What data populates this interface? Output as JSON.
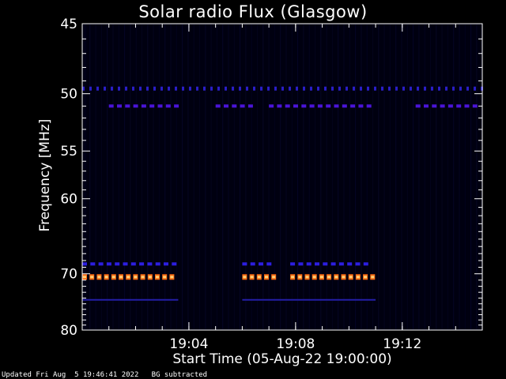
{
  "chart_data": {
    "type": "heatmap",
    "title": "Solar radio Flux (Glasgow)",
    "xlabel": "Start Time (05-Aug-22 19:00:00)",
    "ylabel": "Frequency [MHz]",
    "x_start": "19:00",
    "x_end": "19:15",
    "x_ticks": [
      "19:04",
      "19:08",
      "19:12"
    ],
    "y_ticks": [
      45,
      50,
      55,
      60,
      70,
      80
    ],
    "y_scale": "reciprocal",
    "ylim": [
      45,
      80
    ],
    "grid": false,
    "background_color": "#000010",
    "signals": [
      {
        "freq_mhz": 49.6,
        "level": "low",
        "color": "#2a1ec8",
        "segments": [
          [
            "19:00",
            "19:15"
          ]
        ],
        "pattern": "dots"
      },
      {
        "freq_mhz": 51.0,
        "level": "medium",
        "color": "#4a14d8",
        "segments": [
          [
            "19:01",
            "19:03.7"
          ],
          [
            "19:05",
            "19:06.5"
          ],
          [
            "19:07",
            "19:11"
          ],
          [
            "19:12.5",
            "19:14.8"
          ]
        ],
        "pattern": "dashes"
      },
      {
        "freq_mhz": 68.5,
        "level": "low",
        "color": "#2c1ee0",
        "segments": [
          [
            "19:00",
            "19:03.6"
          ],
          [
            "19:06",
            "19:07.3"
          ],
          [
            "19:07.8",
            "19:11"
          ]
        ],
        "pattern": "dashes"
      },
      {
        "freq_mhz": 70.5,
        "level": "high",
        "color": "#ff6a10",
        "segments": [
          [
            "19:00",
            "19:03.6"
          ],
          [
            "19:06",
            "19:07.3"
          ],
          [
            "19:07.8",
            "19:11"
          ]
        ],
        "pattern": "bars"
      },
      {
        "freq_mhz": 74.3,
        "level": "low",
        "color": "#241ea8",
        "segments": [
          [
            "19:00",
            "19:03.6"
          ],
          [
            "19:06",
            "19:11"
          ]
        ],
        "pattern": "line"
      }
    ]
  },
  "footer": {
    "updated": "Updated Fri Aug  5 19:46:41 2022",
    "note": "BG subtracted"
  },
  "colors": {
    "axis": "#ffffff",
    "background": "#000000"
  }
}
